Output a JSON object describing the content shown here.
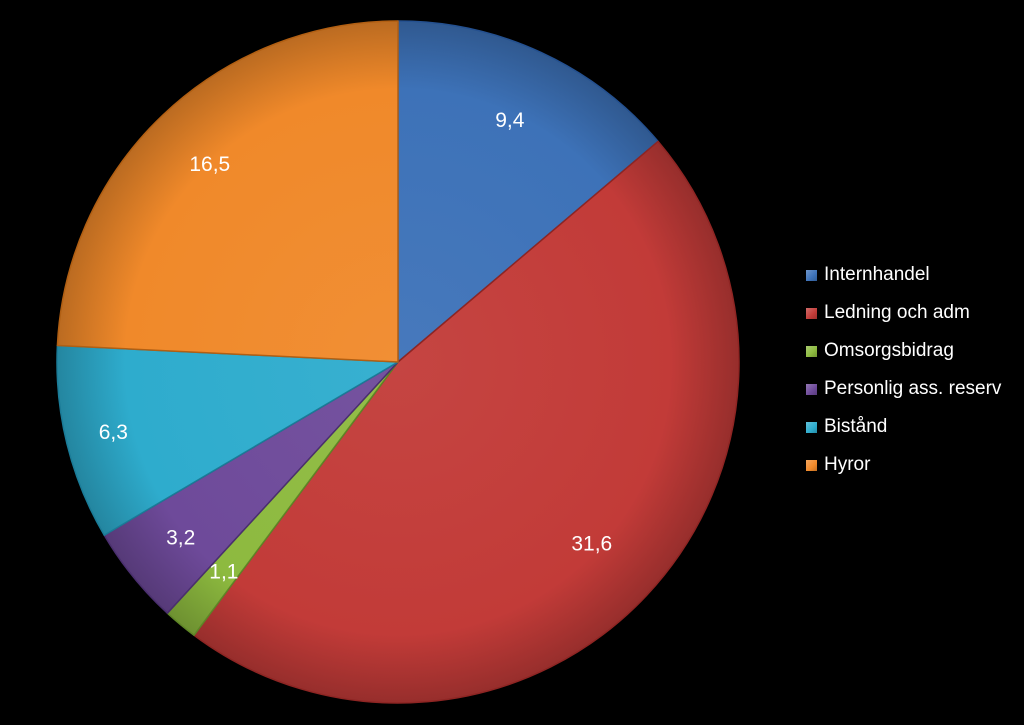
{
  "chart_data": {
    "type": "pie",
    "categories": [
      "Internhandel",
      "Ledning och adm",
      "Omsorgsbidrag",
      "Personlig ass. reserv",
      "Bistånd",
      "Hyror"
    ],
    "values": [
      9.4,
      31.6,
      1.1,
      3.2,
      6.3,
      16.5
    ],
    "value_labels": [
      "9,4",
      "31,6",
      "1,1",
      "3,2",
      "6,3",
      "16,5"
    ],
    "colors": [
      "#3d72b8",
      "#c23b38",
      "#8dba3f",
      "#6e4a9a",
      "#2eaccd",
      "#f0892a"
    ],
    "edge_colors": [
      "#24508f",
      "#8e2523",
      "#5e8526",
      "#4a2f6e",
      "#1a7b97",
      "#b15f13"
    ],
    "title": "",
    "legend_position": "right",
    "start_angle_deg": 0,
    "direction": "clockwise"
  }
}
